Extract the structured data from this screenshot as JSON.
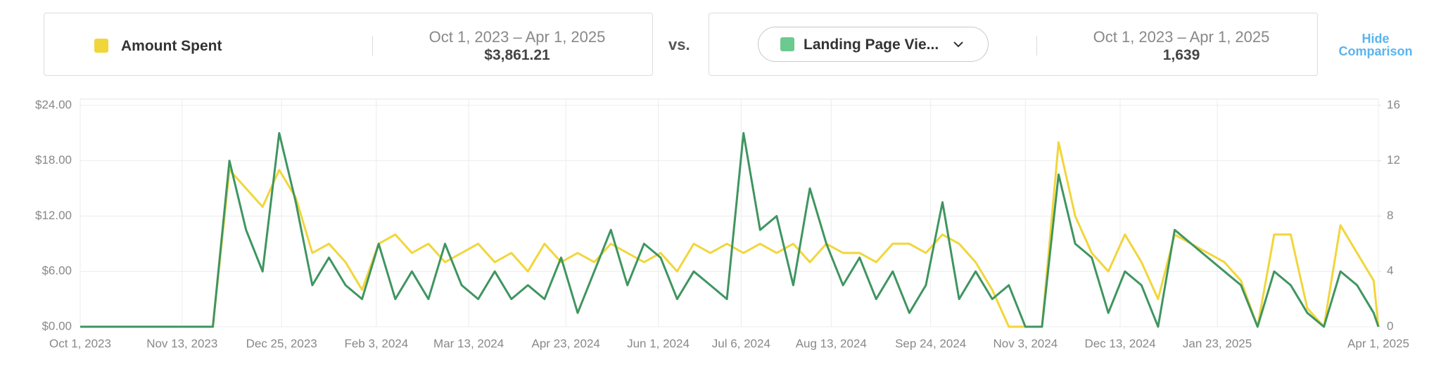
{
  "summary": {
    "primary": {
      "metric": "Amount Spent",
      "range": "Oct 1, 2023 – Apr 1, 2025",
      "total": "$3,861.21"
    },
    "vs": "vs.",
    "secondary": {
      "metric": "Landing Page Vie...",
      "range": "Oct 1, 2023 – Apr 1, 2025",
      "total": "1,639"
    },
    "hide": "Hide Comparison"
  },
  "chart_data": {
    "type": "line",
    "x": [
      "2023-10-01",
      "2023-10-08",
      "2023-10-15",
      "2023-10-22",
      "2023-10-29",
      "2023-11-05",
      "2023-11-12",
      "2023-11-19",
      "2023-11-26",
      "2023-12-03",
      "2023-12-10",
      "2023-12-17",
      "2023-12-24",
      "2023-12-31",
      "2024-01-07",
      "2024-01-14",
      "2024-01-21",
      "2024-01-28",
      "2024-02-04",
      "2024-02-11",
      "2024-02-18",
      "2024-02-25",
      "2024-03-03",
      "2024-03-10",
      "2024-03-17",
      "2024-03-24",
      "2024-03-31",
      "2024-04-07",
      "2024-04-14",
      "2024-04-21",
      "2024-04-28",
      "2024-05-05",
      "2024-05-12",
      "2024-05-19",
      "2024-05-26",
      "2024-06-02",
      "2024-06-09",
      "2024-06-16",
      "2024-06-23",
      "2024-06-30",
      "2024-07-07",
      "2024-07-14",
      "2024-07-21",
      "2024-07-28",
      "2024-08-04",
      "2024-08-11",
      "2024-08-18",
      "2024-08-25",
      "2024-09-01",
      "2024-09-08",
      "2024-09-15",
      "2024-09-22",
      "2024-09-29",
      "2024-10-06",
      "2024-10-13",
      "2024-10-20",
      "2024-10-27",
      "2024-11-03",
      "2024-11-10",
      "2024-11-17",
      "2024-11-24",
      "2024-12-01",
      "2024-12-08",
      "2024-12-15",
      "2024-12-22",
      "2024-12-29",
      "2025-01-05",
      "2025-01-12",
      "2025-01-19",
      "2025-01-26",
      "2025-02-02",
      "2025-02-09",
      "2025-02-16",
      "2025-02-23",
      "2025-03-02",
      "2025-03-09",
      "2025-03-16",
      "2025-03-23",
      "2025-03-30",
      "2025-04-01"
    ],
    "series": [
      {
        "name": "Amount Spent",
        "color": "#f1d63a",
        "values": [
          0,
          0,
          0,
          0,
          0,
          0,
          0,
          0,
          0,
          17,
          15,
          13,
          17,
          14,
          8,
          9,
          7,
          4,
          9,
          10,
          8,
          9,
          7,
          8,
          9,
          7,
          8,
          6,
          9,
          7,
          8,
          7,
          9,
          8,
          7,
          8,
          6,
          9,
          8,
          9,
          8,
          9,
          8,
          9,
          7,
          9,
          8,
          8,
          7,
          9,
          9,
          8,
          10,
          9,
          7,
          4,
          0,
          0,
          0,
          20,
          12,
          8,
          6,
          10,
          7,
          3,
          10,
          9,
          8,
          7,
          5,
          0,
          10,
          10,
          2,
          0,
          11,
          8,
          5,
          0
        ]
      },
      {
        "name": "Landing Page Vie...",
        "color": "#3f9560",
        "axis": "y2",
        "values": [
          0,
          0,
          0,
          0,
          0,
          0,
          0,
          0,
          0,
          12,
          7,
          4,
          14,
          9,
          3,
          5,
          3,
          2,
          6,
          2,
          4,
          2,
          6,
          3,
          2,
          4,
          2,
          3,
          2,
          5,
          1,
          4,
          7,
          3,
          6,
          5,
          2,
          4,
          3,
          2,
          14,
          7,
          8,
          3,
          10,
          6,
          3,
          5,
          2,
          4,
          1,
          3,
          9,
          2,
          4,
          2,
          3,
          0,
          0,
          11,
          6,
          5,
          1,
          4,
          3,
          0,
          7,
          6,
          5,
          4,
          3,
          0,
          4,
          3,
          1,
          0,
          4,
          3,
          1,
          0
        ]
      }
    ],
    "xlim": [
      "2023-10-01",
      "2025-04-01"
    ],
    "xticks": [
      {
        "value": "2023-10-01",
        "label": "Oct 1, 2023"
      },
      {
        "value": "2023-11-13",
        "label": "Nov 13, 2023"
      },
      {
        "value": "2023-12-25",
        "label": "Dec 25, 2023"
      },
      {
        "value": "2024-02-03",
        "label": "Feb 3, 2024"
      },
      {
        "value": "2024-03-13",
        "label": "Mar 13, 2024"
      },
      {
        "value": "2024-04-23",
        "label": "Apr 23, 2024"
      },
      {
        "value": "2024-06-01",
        "label": "Jun 1, 2024"
      },
      {
        "value": "2024-07-06",
        "label": "Jul 6, 2024"
      },
      {
        "value": "2024-08-13",
        "label": "Aug 13, 2024"
      },
      {
        "value": "2024-09-24",
        "label": "Sep 24, 2024"
      },
      {
        "value": "2024-11-03",
        "label": "Nov 3, 2024"
      },
      {
        "value": "2024-12-13",
        "label": "Dec 13, 2024"
      },
      {
        "value": "2025-01-23",
        "label": "Jan 23, 2025"
      },
      {
        "value": "2025-04-01",
        "label": "Apr 1, 2025"
      }
    ],
    "ylim": [
      0,
      24
    ],
    "yticks": [
      {
        "value": 0,
        "label": "$0.00"
      },
      {
        "value": 6,
        "label": "$6.00"
      },
      {
        "value": 12,
        "label": "$12.00"
      },
      {
        "value": 18,
        "label": "$18.00"
      },
      {
        "value": 24,
        "label": "$24.00"
      }
    ],
    "y2lim": [
      0,
      16
    ],
    "y2ticks": [
      0,
      4,
      8,
      12,
      16
    ],
    "grid": true
  }
}
